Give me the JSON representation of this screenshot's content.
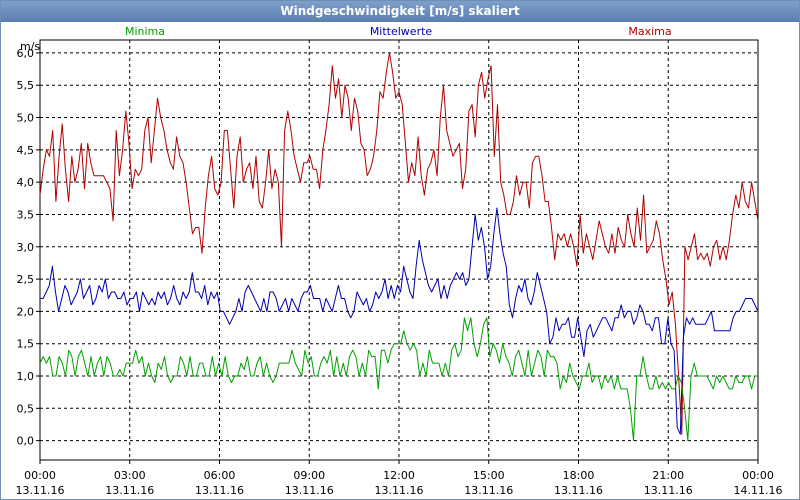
{
  "window": {
    "title": "Windgeschwindigkeit [m/s] skaliert"
  },
  "chart_data": {
    "type": "line",
    "title": "Windgeschwindigkeit [m/s] skaliert",
    "ylabel": "m/s",
    "ylim": [
      -0.3,
      6.2
    ],
    "yticks": [
      "0,0",
      "0,5",
      "1,0",
      "1,5",
      "2,0",
      "2,5",
      "3,0",
      "3,5",
      "4,0",
      "4,5",
      "5,0",
      "5,5",
      "6,0"
    ],
    "x_range_hours": [
      0,
      24
    ],
    "xticks": [
      {
        "time": "00:00",
        "date": "13.11.16"
      },
      {
        "time": "03:00",
        "date": "13.11.16"
      },
      {
        "time": "06:00",
        "date": "13.11.16"
      },
      {
        "time": "09:00",
        "date": "13.11.16"
      },
      {
        "time": "12:00",
        "date": "13.11.16"
      },
      {
        "time": "15:00",
        "date": "13.11.16"
      },
      {
        "time": "18:00",
        "date": "13.11.16"
      },
      {
        "time": "21:00",
        "date": "13.11.16"
      },
      {
        "time": "00:00",
        "date": "14.11.16"
      }
    ],
    "grid": true,
    "series": [
      {
        "name": "Minima",
        "color": "#00a000",
        "values": [
          1.2,
          1.3,
          1.2,
          1.3,
          1.0,
          1.0,
          1.3,
          1.2,
          1.0,
          1.4,
          1.3,
          1.0,
          1.3,
          1.4,
          1.2,
          1.0,
          1.3,
          1.0,
          1.2,
          1.3,
          1.0,
          1.3,
          1.2,
          1.0,
          1.0,
          1.1,
          1.0,
          1.2,
          1.2,
          1.2,
          1.4,
          1.2,
          1.3,
          1.0,
          1.2,
          1.0,
          0.9,
          1.2,
          1.1,
          1.3,
          1.0,
          0.9,
          1.0,
          1.0,
          1.3,
          1.2,
          1.0,
          1.3,
          1.0,
          1.0,
          1.2,
          1.2,
          1.0,
          1.0,
          1.3,
          1.0,
          1.2,
          1.0,
          1.3,
          1.0,
          0.9,
          1.0,
          1.0,
          1.2,
          1.1,
          1.3,
          1.0,
          1.0,
          1.2,
          1.3,
          1.0,
          1.2,
          1.0,
          0.9,
          1.0,
          1.2,
          1.2,
          1.2,
          1.2,
          1.4,
          1.2,
          1.1,
          1.0,
          1.4,
          1.2,
          1.3,
          1.0,
          1.0,
          1.2,
          1.3,
          1.2,
          1.4,
          1.0,
          1.3,
          1.0,
          1.2,
          1.0,
          1.3,
          1.4,
          1.3,
          1.0,
          1.2,
          1.0,
          1.4,
          1.3,
          1.3,
          0.8,
          1.4,
          1.4,
          1.2,
          1.4,
          1.5,
          1.5,
          1.5,
          1.7,
          1.5,
          1.4,
          1.5,
          1.4,
          1.0,
          1.2,
          1.0,
          1.4,
          1.2,
          1.2,
          1.2,
          1.0,
          1.2,
          1.0,
          1.4,
          1.5,
          1.3,
          1.4,
          1.9,
          1.7,
          1.9,
          1.5,
          1.3,
          1.5,
          1.8,
          1.9,
          1.3,
          1.5,
          1.4,
          1.2,
          1.5,
          1.3,
          1.2,
          1.0,
          1.3,
          1.4,
          1.2,
          1.0,
          1.4,
          1.0,
          1.2,
          1.4,
          1.3,
          1.0,
          1.4,
          1.3,
          1.3,
          1.2,
          0.8,
          1.0,
          0.9,
          1.2,
          1.0,
          0.9,
          0.8,
          1.0,
          1.0,
          1.2,
          0.9,
          1.0,
          1.0,
          0.8,
          1.0,
          0.9,
          1.0,
          0.8,
          1.0,
          0.8,
          0.8,
          0.8,
          0.5,
          0.0,
          1.0,
          1.0,
          1.3,
          1.0,
          0.8,
          0.8,
          1.0,
          0.8,
          0.9,
          0.8,
          0.9,
          0.8,
          0.8,
          1.0,
          0.9,
          0.5,
          0.0,
          1.0,
          1.2,
          1.0,
          1.0,
          1.0,
          1.0,
          0.9,
          0.8,
          1.0,
          0.9,
          1.0,
          0.9,
          0.8,
          0.8,
          1.0,
          0.9,
          0.9,
          1.0,
          1.0,
          0.8,
          1.0,
          1.0
        ]
      },
      {
        "name": "Mittelwerte",
        "color": "#0000b0",
        "values": [
          2.2,
          2.2,
          2.3,
          2.4,
          2.7,
          2.3,
          2.0,
          2.2,
          2.4,
          2.3,
          2.1,
          2.2,
          2.3,
          2.5,
          2.2,
          2.3,
          2.4,
          2.1,
          2.2,
          2.4,
          2.3,
          2.5,
          2.2,
          2.3,
          2.3,
          2.2,
          2.2,
          2.3,
          2.1,
          2.2,
          2.2,
          2.3,
          2.0,
          2.3,
          2.2,
          2.1,
          2.2,
          2.1,
          2.3,
          2.2,
          2.3,
          2.1,
          2.2,
          2.4,
          2.2,
          2.1,
          2.3,
          2.2,
          2.3,
          2.6,
          2.3,
          2.3,
          2.2,
          2.4,
          2.1,
          2.3,
          2.2,
          2.3,
          2.0,
          2.0,
          1.9,
          1.8,
          1.9,
          2.0,
          2.2,
          2.0,
          2.3,
          2.4,
          2.3,
          2.2,
          2.1,
          2.0,
          2.2,
          2.0,
          2.3,
          2.3,
          2.2,
          2.0,
          2.1,
          2.2,
          2.0,
          2.2,
          2.1,
          2.0,
          2.2,
          2.3,
          2.3,
          2.4,
          2.2,
          2.2,
          2.2,
          2.0,
          2.2,
          2.1,
          2.0,
          2.2,
          2.4,
          2.2,
          2.2,
          2.0,
          1.9,
          2.0,
          2.3,
          2.2,
          2.1,
          2.2,
          2.0,
          2.1,
          2.3,
          2.2,
          2.3,
          2.5,
          2.2,
          2.4,
          2.2,
          2.4,
          2.3,
          2.7,
          2.5,
          2.3,
          2.2,
          2.7,
          3.1,
          2.8,
          2.6,
          2.4,
          2.3,
          2.4,
          2.5,
          2.2,
          2.4,
          2.2,
          2.4,
          2.5,
          2.6,
          2.5,
          2.6,
          2.4,
          2.5,
          3.0,
          3.5,
          3.1,
          3.3,
          3.0,
          2.5,
          2.7,
          3.2,
          3.6,
          3.2,
          2.9,
          2.7,
          2.1,
          1.9,
          2.2,
          2.4,
          2.3,
          2.5,
          2.2,
          2.1,
          2.3,
          2.6,
          2.4,
          2.2,
          2.0,
          1.5,
          1.6,
          1.9,
          1.7,
          1.8,
          1.8,
          1.9,
          1.6,
          1.6,
          1.9,
          1.6,
          1.3,
          1.7,
          1.8,
          1.6,
          1.7,
          1.8,
          1.9,
          1.9,
          1.8,
          1.7,
          1.9,
          1.9,
          2.1,
          1.9,
          2.0,
          2.0,
          1.8,
          1.9,
          2.1,
          2.0,
          1.8,
          1.8,
          1.7,
          1.9,
          1.9,
          1.5,
          1.5,
          1.9,
          1.5,
          1.4,
          0.2,
          0.1,
          1.6,
          1.9,
          1.8,
          1.9,
          1.8,
          1.8,
          1.8,
          1.8,
          1.9,
          2.0,
          1.7,
          1.7,
          1.7,
          1.7,
          1.7,
          1.7,
          1.9,
          2.0,
          2.0,
          2.1,
          2.2,
          2.2,
          2.2,
          2.1,
          2.0
        ]
      },
      {
        "name": "Maxima",
        "color": "#b00000",
        "values": [
          3.8,
          4.2,
          4.5,
          4.4,
          4.8,
          3.7,
          4.4,
          4.9,
          4.2,
          3.7,
          4.4,
          4.0,
          4.2,
          4.6,
          3.9,
          4.6,
          4.3,
          4.1,
          4.1,
          4.1,
          4.1,
          4.0,
          3.9,
          3.4,
          4.8,
          4.1,
          4.5,
          5.1,
          4.6,
          3.9,
          4.2,
          4.1,
          4.2,
          4.8,
          5.0,
          4.3,
          4.8,
          5.3,
          5.0,
          4.8,
          4.5,
          4.3,
          4.2,
          4.7,
          4.4,
          4.3,
          4.0,
          3.6,
          3.2,
          3.3,
          3.3,
          2.9,
          3.6,
          4.1,
          4.4,
          3.9,
          3.8,
          4.0,
          4.8,
          4.8,
          4.2,
          3.6,
          4.4,
          4.7,
          4.0,
          4.2,
          4.3,
          3.9,
          4.4,
          3.7,
          3.6,
          4.0,
          4.5,
          3.9,
          4.2,
          4.0,
          3.0,
          4.8,
          5.1,
          4.8,
          4.4,
          4.2,
          4.0,
          4.3,
          4.3,
          4.4,
          4.2,
          4.2,
          3.9,
          4.5,
          4.8,
          5.2,
          5.8,
          5.3,
          5.6,
          5.0,
          5.5,
          5.3,
          4.8,
          5.3,
          5.1,
          4.6,
          4.5,
          4.1,
          4.2,
          4.4,
          4.8,
          5.4,
          5.3,
          5.7,
          6.0,
          5.7,
          5.3,
          5.4,
          5.2,
          4.6,
          4.0,
          4.3,
          4.1,
          4.7,
          4.1,
          3.8,
          4.2,
          4.3,
          4.5,
          4.1,
          5.0,
          5.5,
          4.8,
          4.6,
          4.4,
          4.5,
          4.6,
          3.9,
          4.2,
          5.1,
          5.2,
          4.7,
          5.5,
          5.7,
          5.3,
          5.6,
          5.8,
          4.4,
          5.2,
          4.0,
          3.8,
          3.5,
          3.5,
          3.7,
          4.1,
          3.8,
          4.0,
          4.0,
          3.6,
          4.3,
          4.4,
          4.4,
          4.1,
          3.7,
          3.7,
          3.3,
          2.8,
          3.2,
          3.1,
          3.2,
          3.0,
          3.2,
          3.0,
          2.7,
          3.5,
          2.9,
          3.2,
          3.0,
          2.8,
          3.1,
          3.4,
          3.2,
          3.0,
          2.9,
          3.2,
          2.9,
          3.3,
          3.1,
          3.0,
          3.5,
          3.2,
          3.0,
          3.6,
          3.1,
          3.8,
          2.9,
          3.0,
          3.1,
          3.4,
          3.2,
          2.8,
          2.5,
          2.1,
          2.3,
          1.8,
          1.0,
          0.1,
          3.0,
          2.8,
          3.0,
          3.2,
          2.8,
          2.9,
          2.8,
          2.9,
          2.7,
          3.0,
          3.1,
          2.8,
          3.0,
          2.8,
          3.1,
          3.5,
          3.8,
          3.6,
          4.0,
          3.7,
          3.6,
          4.0,
          3.7,
          3.4
        ]
      }
    ]
  }
}
